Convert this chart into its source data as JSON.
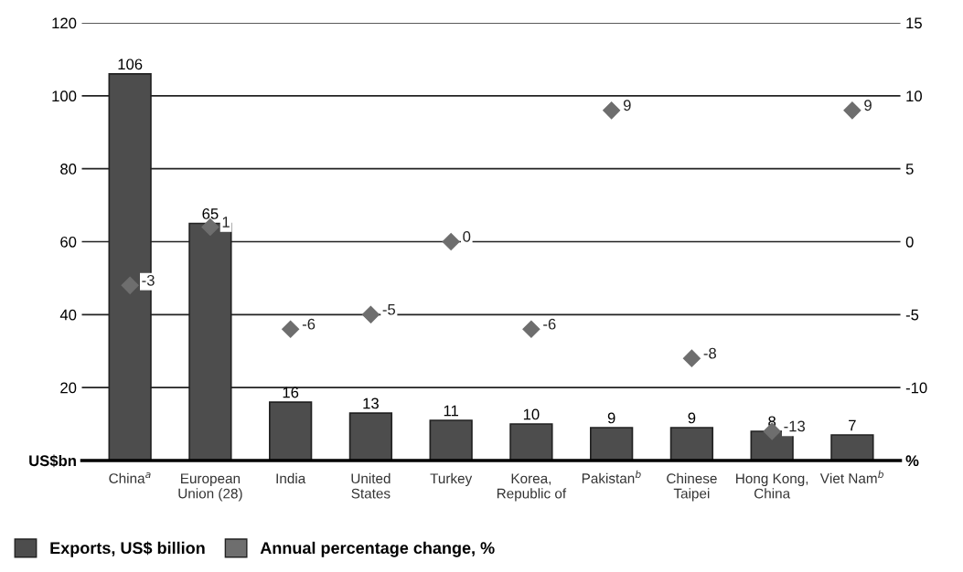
{
  "chart_data": {
    "type": "bar",
    "categories": [
      "China$^{a}$",
      "European\nUnion (28)",
      "India",
      "United\nStates",
      "Turkey",
      "Korea,\nRepublic of",
      "Pakistan$^{b}$",
      "Chinese\nTaipei",
      "Hong Kong,\nChina",
      "Viet Nam$^{b}$"
    ],
    "series": [
      {
        "name": "Exports, US$ billion",
        "color": "#4d4d4d",
        "values": [
          106,
          65,
          16,
          13,
          11,
          10,
          9,
          9,
          8,
          7
        ]
      },
      {
        "name": "Annual percentage change, %",
        "type": "scatter",
        "axis": "y2",
        "color": "#6e6e6e",
        "marker": "diamond",
        "values": [
          -3,
          1,
          -6,
          -5,
          0,
          -6,
          9,
          -8,
          -13,
          9
        ]
      }
    ],
    "ylim": [
      0,
      120
    ],
    "yticks": [
      {
        "value": 0,
        "label": "US$bn"
      },
      20,
      40,
      60,
      80,
      100,
      120
    ],
    "y2lim": [
      -15,
      15
    ],
    "y2ticks": [
      {
        "value": -15,
        "label": "%"
      },
      -10,
      -5,
      0,
      5,
      10,
      15
    ],
    "grid": "y",
    "legend": "bottom left",
    "data_labels": true
  }
}
